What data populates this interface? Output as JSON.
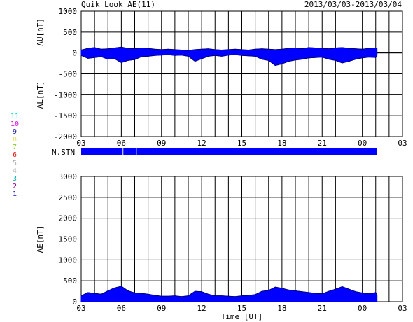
{
  "header": {
    "title": "Quik Look AE(11)",
    "date_range": "2013/03/03-2013/03/04"
  },
  "station_legend": [
    {
      "label": "11",
      "color": "#00d8d8"
    },
    {
      "label": "10",
      "color": "#e000e0"
    },
    {
      "label": "9",
      "color": "#1a1aa8"
    },
    {
      "label": "8",
      "color": "#e8e060"
    },
    {
      "label": "7",
      "color": "#8ad030"
    },
    {
      "label": "6",
      "color": "#e01010"
    },
    {
      "label": "5",
      "color": "#b0b0b0"
    },
    {
      "label": "4",
      "color": "#b8b8b8"
    },
    {
      "label": "3",
      "color": "#00b0b0"
    },
    {
      "label": "2",
      "color": "#a000a0"
    },
    {
      "label": "1",
      "color": "#1010c0"
    }
  ],
  "chart_data": [
    {
      "type": "area",
      "name": "AU/AL",
      "ylabel_top": "AU[nT]",
      "ylabel_bottom": "AL[nT]",
      "ylim": [
        -2000,
        1000
      ],
      "yticks": [
        1000,
        500,
        0,
        -500,
        -1000,
        -1500,
        -2000
      ],
      "xlim": [
        0,
        24
      ],
      "xticks": [
        "03",
        "06",
        "09",
        "12",
        "15",
        "18",
        "21",
        "00",
        "03"
      ],
      "xtick_hours": [
        0,
        3,
        6,
        9,
        12,
        15,
        18,
        21,
        24
      ],
      "data_end_hour": 22.1,
      "grid": true,
      "color": "#0000ff",
      "series": [
        {
          "name": "AU",
          "x": [
            0,
            0.5,
            1,
            1.5,
            2,
            2.5,
            3,
            3.5,
            4,
            4.5,
            5,
            5.5,
            6,
            6.5,
            7,
            7.5,
            8,
            8.5,
            9,
            9.5,
            10,
            10.5,
            11,
            11.5,
            12,
            12.5,
            13,
            13.5,
            14,
            14.5,
            15,
            15.5,
            16,
            16.5,
            17,
            17.5,
            18,
            18.5,
            19,
            19.5,
            20,
            20.5,
            21,
            21.5,
            22,
            22.1
          ],
          "values": [
            70,
            110,
            130,
            90,
            100,
            120,
            140,
            110,
            100,
            120,
            110,
            90,
            80,
            90,
            80,
            70,
            60,
            80,
            90,
            100,
            80,
            70,
            80,
            90,
            80,
            70,
            90,
            100,
            90,
            80,
            90,
            110,
            120,
            100,
            130,
            120,
            110,
            100,
            120,
            130,
            110,
            100,
            90,
            110,
            120,
            100
          ]
        },
        {
          "name": "AL",
          "x": [
            0,
            0.5,
            1,
            1.5,
            2,
            2.5,
            3,
            3.5,
            4,
            4.5,
            5,
            5.5,
            6,
            6.5,
            7,
            7.5,
            8,
            8.5,
            9,
            9.5,
            10,
            10.5,
            11,
            11.5,
            12,
            12.5,
            13,
            13.5,
            14,
            14.5,
            15,
            15.5,
            16,
            16.5,
            17,
            17.5,
            18,
            18.5,
            19,
            19.5,
            20,
            20.5,
            21,
            21.5,
            22,
            22.1
          ],
          "values": [
            -60,
            -130,
            -110,
            -90,
            -150,
            -140,
            -230,
            -180,
            -160,
            -90,
            -80,
            -60,
            -50,
            -40,
            -60,
            -50,
            -80,
            -200,
            -140,
            -80,
            -60,
            -80,
            -50,
            -40,
            -60,
            -70,
            -80,
            -150,
            -180,
            -300,
            -260,
            -200,
            -170,
            -150,
            -120,
            -110,
            -100,
            -150,
            -180,
            -240,
            -200,
            -150,
            -120,
            -100,
            -110,
            -60
          ]
        }
      ]
    },
    {
      "type": "bar",
      "name": "N.STN",
      "label": "N.STN",
      "xlim": [
        0,
        24
      ],
      "xticks": [
        "03",
        "06",
        "09",
        "12",
        "15",
        "18",
        "21",
        "00",
        "03"
      ],
      "xtick_hours": [
        0,
        3,
        6,
        9,
        12,
        15,
        18,
        21,
        24
      ],
      "segments": [
        [
          0,
          3.1
        ],
        [
          3.15,
          4.1
        ],
        [
          4.15,
          22.1
        ]
      ],
      "color": "#0000ff"
    },
    {
      "type": "area",
      "name": "AE",
      "ylabel": "AE[nT]",
      "xlabel": "Time [UT]",
      "ylim": [
        0,
        3000
      ],
      "yticks": [
        3000,
        2500,
        2000,
        1500,
        1000,
        500,
        0
      ],
      "xlim": [
        0,
        24
      ],
      "xticks": [
        "03",
        "06",
        "09",
        "12",
        "15",
        "18",
        "21",
        "00",
        "03"
      ],
      "xtick_hours": [
        0,
        3,
        6,
        9,
        12,
        15,
        18,
        21,
        24
      ],
      "grid": true,
      "color": "#0000ff",
      "series": [
        {
          "name": "AE",
          "x": [
            0,
            0.5,
            1,
            1.5,
            2,
            2.5,
            3,
            3.5,
            4,
            4.5,
            5,
            5.5,
            6,
            6.5,
            7,
            7.5,
            8,
            8.5,
            9,
            9.5,
            10,
            10.5,
            11,
            11.5,
            12,
            12.5,
            13,
            13.5,
            14,
            14.5,
            15,
            15.5,
            16,
            16.5,
            17,
            17.5,
            18,
            18.5,
            19,
            19.5,
            20,
            20.5,
            21,
            21.5,
            22,
            22.1
          ],
          "values": [
            140,
            220,
            200,
            180,
            260,
            330,
            370,
            260,
            210,
            200,
            180,
            150,
            130,
            130,
            140,
            120,
            140,
            250,
            240,
            180,
            140,
            140,
            130,
            120,
            140,
            150,
            170,
            250,
            270,
            350,
            320,
            280,
            260,
            240,
            220,
            200,
            190,
            250,
            300,
            360,
            300,
            240,
            210,
            190,
            220,
            160
          ]
        }
      ]
    }
  ]
}
